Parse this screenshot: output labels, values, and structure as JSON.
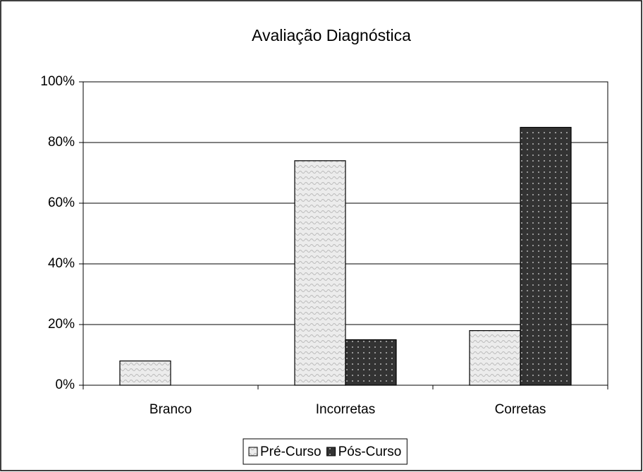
{
  "chart_data": {
    "type": "bar",
    "title": "Avaliação Diagnóstica",
    "categories": [
      "Branco",
      "Incorretas",
      "Corretas"
    ],
    "series": [
      {
        "name": "Pré-Curso",
        "color": "#ececec",
        "values": [
          8,
          74,
          18
        ]
      },
      {
        "name": "Pós-Curso",
        "color": "#333333",
        "values": [
          0,
          15,
          85
        ]
      }
    ],
    "ylim": [
      0,
      100
    ],
    "yticks": [
      {
        "value": 0,
        "label": "0%"
      },
      {
        "value": 20,
        "label": "20%"
      },
      {
        "value": 40,
        "label": "40%"
      },
      {
        "value": 60,
        "label": "60%"
      },
      {
        "value": 80,
        "label": "80%"
      },
      {
        "value": 100,
        "label": "100%"
      }
    ],
    "grid": true,
    "legend": "bottom"
  }
}
